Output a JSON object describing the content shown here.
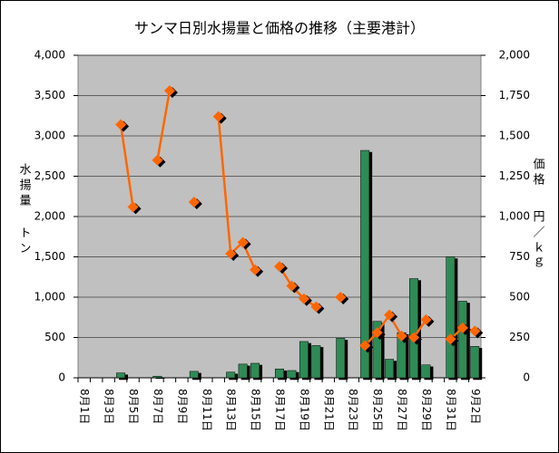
{
  "chart_data": {
    "type": "bar_line",
    "title": "サンマ日別水揚量と価格の推移（主要港計）",
    "ylabel": [
      "水揚量",
      "トン"
    ],
    "y2label": [
      "価格",
      "円／ｋｇ"
    ],
    "categories": [
      "8月1日",
      null,
      "8月3日",
      null,
      "8月5日",
      null,
      "8月7日",
      null,
      "8月9日",
      null,
      "8月11日",
      null,
      "8月13日",
      null,
      "8月15日",
      null,
      "8月17日",
      null,
      "8月19日",
      null,
      "8月21日",
      null,
      "8月23日",
      null,
      "8月25日",
      null,
      "8月27日",
      null,
      "8月29日",
      null,
      "8月31日",
      null,
      "9月2日"
    ],
    "series": [
      {
        "type": "bar",
        "color": "#2e8b57",
        "values": [
          null,
          null,
          null,
          60,
          null,
          null,
          20,
          null,
          null,
          80,
          null,
          null,
          70,
          170,
          180,
          null,
          110,
          90,
          450,
          400,
          null,
          490,
          null,
          2820,
          700,
          230,
          560,
          1230,
          160,
          null,
          1500,
          950,
          390
        ]
      },
      {
        "type": "line",
        "axis": "y2",
        "color": "#ff6600",
        "values": [
          null,
          null,
          null,
          1570,
          1060,
          null,
          1350,
          1780,
          null,
          1090,
          null,
          1620,
          770,
          840,
          670,
          null,
          690,
          570,
          490,
          440,
          null,
          500,
          null,
          200,
          280,
          390,
          260,
          250,
          360,
          null,
          240,
          310,
          290
        ]
      }
    ],
    "ylim": [
      0,
      4000
    ],
    "yticks": [
      0,
      500,
      {
        "value": 1000,
        "label": "1,000"
      },
      {
        "value": 1500,
        "label": "1,500"
      },
      {
        "value": 2000,
        "label": "2,000"
      },
      {
        "value": 2500,
        "label": "2,500"
      },
      {
        "value": 3000,
        "label": "3,000"
      },
      {
        "value": 3500,
        "label": "3,500"
      },
      {
        "value": 4000,
        "label": "4,000"
      }
    ],
    "y2lim": [
      0,
      2000
    ],
    "y2ticks": [
      0,
      250,
      500,
      750,
      {
        "value": 1000,
        "label": "1,000"
      },
      {
        "value": 1250,
        "label": "1,250"
      },
      {
        "value": 1500,
        "label": "1,500"
      },
      {
        "value": 1750,
        "label": "1,750"
      },
      {
        "value": 2000,
        "label": "2,000"
      }
    ],
    "grid": true,
    "plot_background": "#c0c0c0"
  }
}
